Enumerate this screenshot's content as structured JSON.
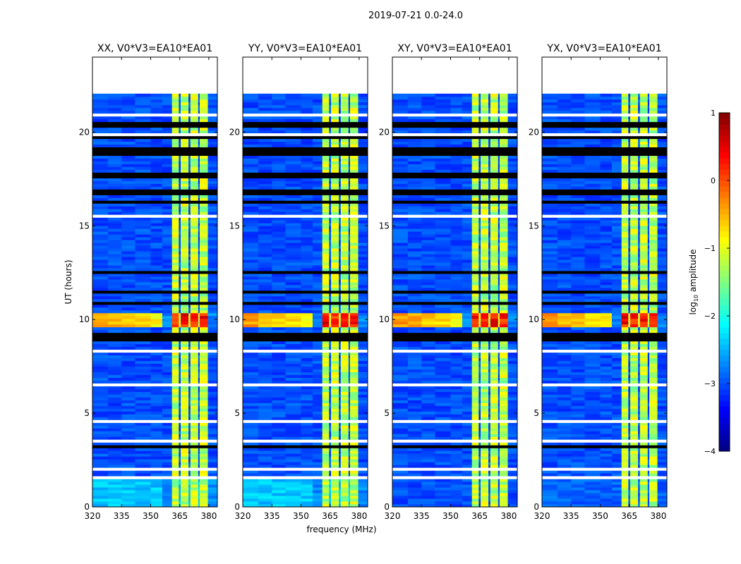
{
  "chart_data": {
    "type": "heatmap",
    "suptitle": "2019-07-21 0.0-24.0",
    "xlabel": "frequency (MHz)",
    "ylabel": "UT (hours)",
    "xlim": [
      320,
      384.4
    ],
    "ylim": [
      0,
      24
    ],
    "xticks": [
      320,
      335,
      350,
      365,
      380
    ],
    "yticks": [
      0,
      5,
      10,
      15,
      20
    ],
    "panels": [
      {
        "title": "XX, V0*V3=EA10*EA01",
        "early_level": -2.4
      },
      {
        "title": "YY, V0*V3=EA10*EA01",
        "early_level": -2.4
      },
      {
        "title": "XY, V0*V3=EA10*EA01",
        "early_level": -3.0
      },
      {
        "title": "YX, V0*V3=EA10*EA01",
        "early_level": -2.9
      }
    ],
    "background_level": -3.0,
    "early_hours": [
      0,
      1.45
    ],
    "bright_bands_mhz": [
      [
        361,
        364.5
      ],
      [
        365.5,
        369.5
      ],
      [
        370.5,
        374.5
      ],
      [
        375.3,
        379.5
      ]
    ],
    "bright_level": -1.2,
    "strong_rfi_hours": [
      9.6,
      10.3
    ],
    "strong_rfi_level": 0.3,
    "no_data_hours": [
      21.9,
      24
    ],
    "flagged_hours": [
      [
        1.45,
        1.7
      ],
      [
        2.0,
        2.05
      ],
      [
        3.45,
        3.55
      ],
      [
        4.5,
        4.6
      ],
      [
        5.8,
        5.85
      ],
      [
        6.5,
        6.55
      ],
      [
        8.3,
        8.35
      ],
      [
        13.6,
        13.7
      ],
      [
        14.4,
        14.45
      ],
      [
        15.5,
        15.55
      ],
      [
        17.1,
        17.15
      ],
      [
        19.85,
        20.0
      ],
      [
        20.9,
        20.95
      ],
      [
        21.3,
        21.35
      ]
    ],
    "dropout_hours": [
      [
        3.1,
        3.25
      ],
      [
        8.8,
        9.3
      ],
      [
        10.85,
        10.9
      ],
      [
        11.4,
        11.5
      ],
      [
        12.5,
        12.55
      ],
      [
        16.2,
        16.4
      ],
      [
        16.6,
        16.9
      ],
      [
        17.6,
        17.9
      ],
      [
        18.8,
        19.2
      ],
      [
        19.6,
        19.8
      ],
      [
        20.2,
        20.5
      ]
    ],
    "colorbar": {
      "label": "log10 amplitude",
      "label_main": "log",
      "label_sub": "10",
      "label_rest": " amplitude",
      "range": [
        -4,
        1
      ],
      "ticks": [
        1,
        0,
        -1,
        -2,
        -3,
        -4
      ],
      "tick_labels": [
        "1",
        "0",
        "−1",
        "−2",
        "−3",
        "−4"
      ],
      "colormap": "jet"
    }
  }
}
